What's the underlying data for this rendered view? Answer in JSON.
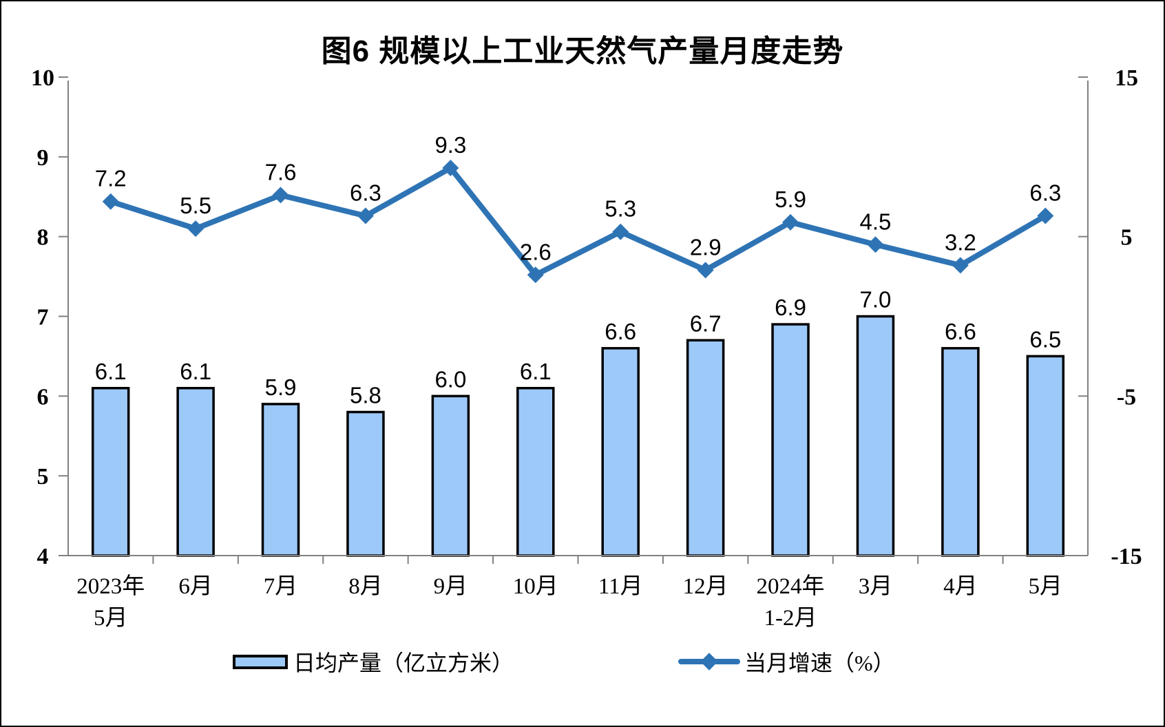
{
  "title": "图6 规模以上工业天然气产量月度走势",
  "colors": {
    "bar_fill": "#9DC9F9",
    "bar_border": "#000000",
    "line": "#2E74B5",
    "axis": "#808080",
    "text": "#000000"
  },
  "legend": {
    "bar_label": "日均产量（亿立方米）",
    "line_label": "当月增速（%）"
  },
  "chart_data": {
    "type": "bar+line",
    "categories": [
      [
        "2023年",
        "5月"
      ],
      [
        "6月"
      ],
      [
        "7月"
      ],
      [
        "8月"
      ],
      [
        "9月"
      ],
      [
        "10月"
      ],
      [
        "11月"
      ],
      [
        "12月"
      ],
      [
        "2024年",
        "1-2月"
      ],
      [
        "3月"
      ],
      [
        "4月"
      ],
      [
        "5月"
      ]
    ],
    "series": [
      {
        "name": "日均产量（亿立方米）",
        "type": "bar",
        "yaxis": "left",
        "values": [
          6.1,
          6.1,
          5.9,
          5.8,
          6.0,
          6.1,
          6.6,
          6.7,
          6.9,
          7.0,
          6.6,
          6.5
        ],
        "labels": [
          "6.1",
          "6.1",
          "5.9",
          "5.8",
          "6.0",
          "6.1",
          "6.6",
          "6.7",
          "6.9",
          "7.0",
          "6.6",
          "6.5"
        ]
      },
      {
        "name": "当月增速（%）",
        "type": "line",
        "yaxis": "right",
        "values": [
          7.2,
          5.5,
          7.6,
          6.3,
          9.3,
          2.6,
          5.3,
          2.9,
          5.9,
          4.5,
          3.2,
          6.3
        ],
        "labels": [
          "7.2",
          "5.5",
          "7.6",
          "6.3",
          "9.3",
          "2.6",
          "5.3",
          "2.9",
          "5.9",
          "4.5",
          "3.2",
          "6.3"
        ]
      }
    ],
    "left_axis": {
      "min": 4,
      "max": 10,
      "tick_step": 1,
      "tick_labels": [
        "10",
        "9",
        "8",
        "7",
        "6",
        "5",
        "4"
      ]
    },
    "right_axis": {
      "min": -15,
      "max": 15,
      "tick_step": 10,
      "tick_labels": [
        "15",
        "5",
        "-5",
        "-15"
      ]
    },
    "grid": false,
    "legend_position": "bottom"
  }
}
